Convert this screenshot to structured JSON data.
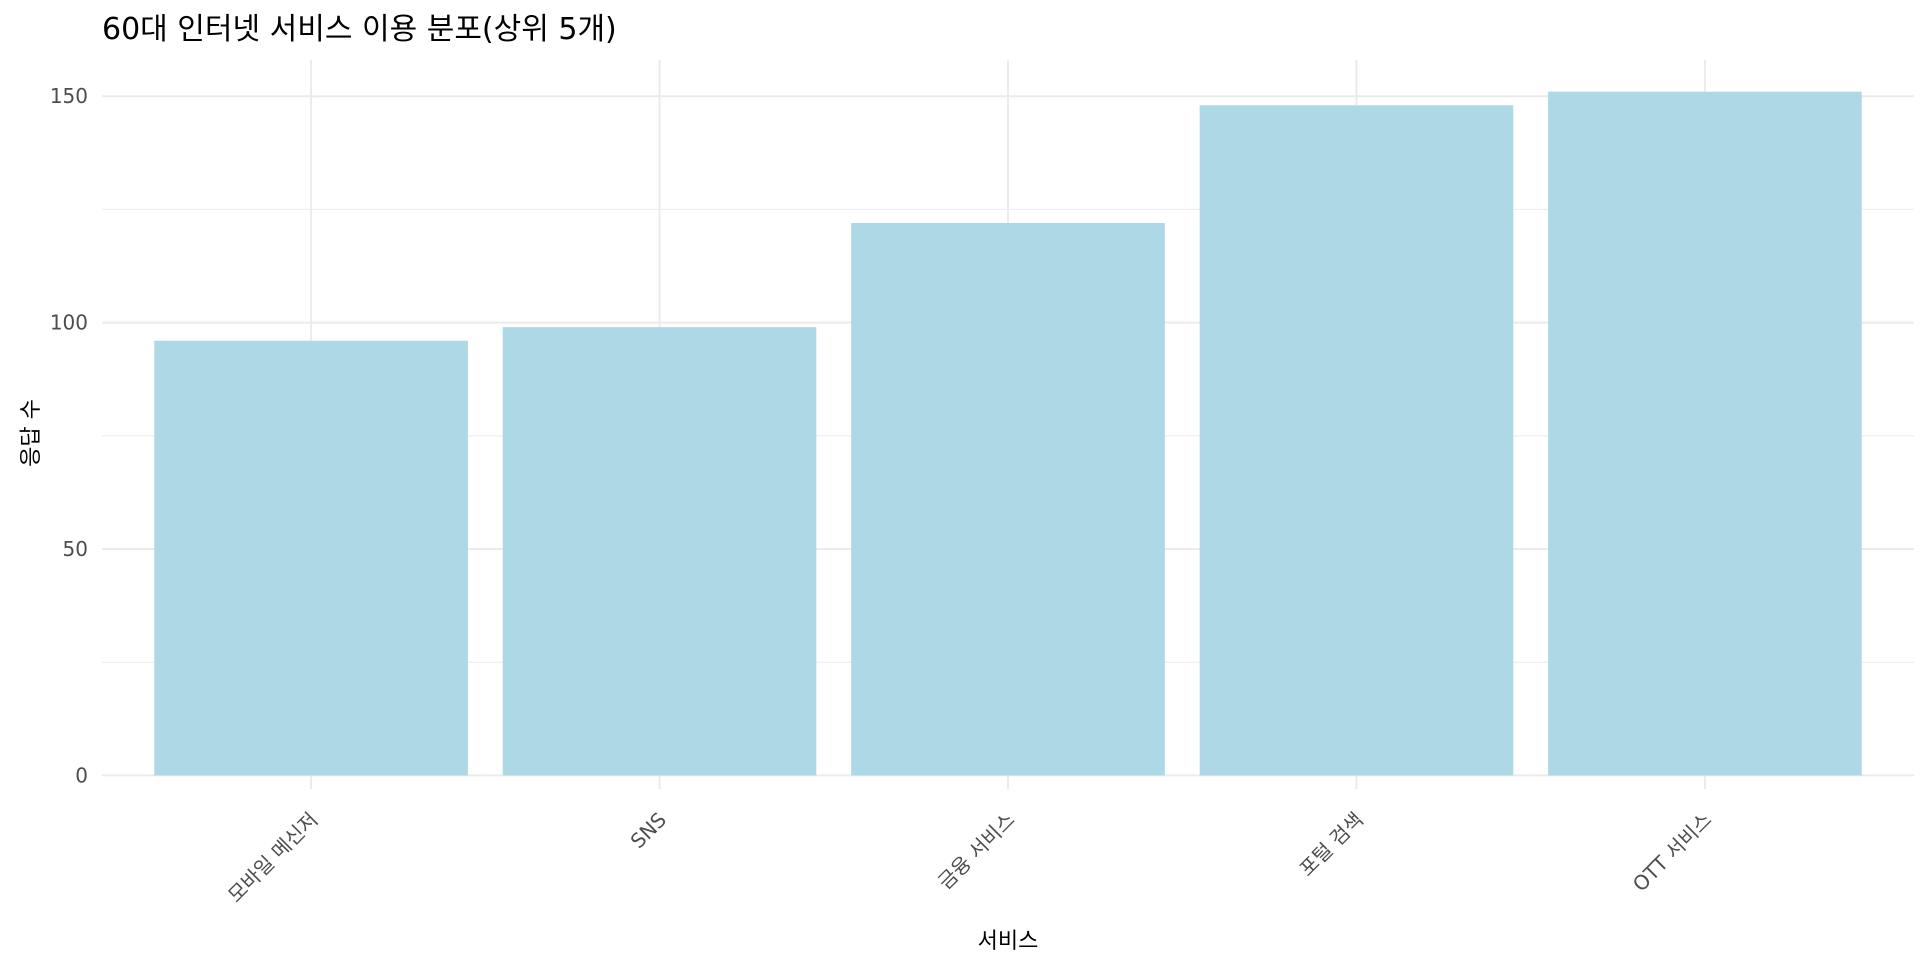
{
  "chart_data": {
    "type": "bar",
    "title": "60대 인터넷 서비스 이용 분포(상위 5개)",
    "xlabel": "서비스",
    "ylabel": "응답 수",
    "categories": [
      "모바일 메신저",
      "SNS",
      "금융 서비스",
      "포털 검색",
      "OTT 서비스"
    ],
    "values": [
      96,
      99,
      122,
      148,
      151
    ],
    "ylim": [
      -3,
      158
    ],
    "yticks": [
      0,
      50,
      100,
      150
    ],
    "y_minor_ticks": [
      25,
      75,
      125
    ],
    "grid": true,
    "legend": "none",
    "colors": {
      "bar": "#add8e6",
      "grid": "#ebebeb",
      "tick_text": "#4d4d4d"
    }
  }
}
